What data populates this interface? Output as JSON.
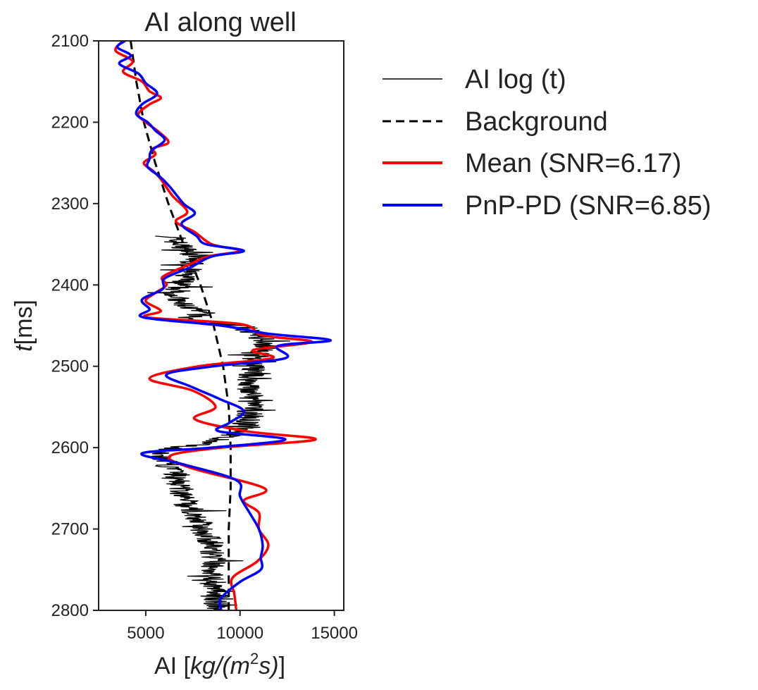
{
  "chart_data": {
    "type": "line",
    "orientation": "vertical-profile",
    "title": "AI along well",
    "xlabel_prefix": "AI [",
    "xlabel_unit_main": "kg/(m",
    "xlabel_unit_sup": "2",
    "xlabel_unit_tail": "s)",
    "xlabel_suffix": "]",
    "ylabel_var": "t",
    "ylabel_unit": "[ms]",
    "xlim": [
      2500,
      15500
    ],
    "ylim": [
      2800,
      2100
    ],
    "y_inverted": true,
    "xticks": [
      5000,
      10000,
      15000
    ],
    "xtick_labels": [
      "5000",
      "10000",
      "15000"
    ],
    "yticks": [
      2100,
      2200,
      2300,
      2400,
      2500,
      2600,
      2700,
      2800
    ],
    "ytick_labels": [
      "2100",
      "2200",
      "2300",
      "2400",
      "2500",
      "2600",
      "2700",
      "2800"
    ],
    "grid": false,
    "legend_position": "outside-right",
    "series": [
      {
        "name": "AI log (t)",
        "color": "#000000",
        "style": "solid-thin",
        "t_start": 2340,
        "t_end": 2800,
        "base_x": [
          [
            2340,
            6200
          ],
          [
            2365,
            7600
          ],
          [
            2385,
            7200
          ],
          [
            2400,
            6800
          ],
          [
            2420,
            6600
          ],
          [
            2435,
            8000
          ],
          [
            2445,
            7000
          ],
          [
            2450,
            10000
          ],
          [
            2470,
            11500
          ],
          [
            2490,
            10800
          ],
          [
            2520,
            10500
          ],
          [
            2550,
            10600
          ],
          [
            2580,
            10200
          ],
          [
            2595,
            8000
          ],
          [
            2605,
            5500
          ],
          [
            2630,
            6500
          ],
          [
            2660,
            7000
          ],
          [
            2690,
            7800
          ],
          [
            2720,
            8500
          ],
          [
            2750,
            8600
          ],
          [
            2780,
            8700
          ],
          [
            2800,
            8800
          ]
        ],
        "spread_x": 1400
      },
      {
        "name": "Background",
        "color": "#000000",
        "style": "dashed",
        "t": [
          2100,
          2150,
          2200,
          2250,
          2300,
          2350,
          2400,
          2450,
          2500,
          2550,
          2600,
          2650,
          2700,
          2750,
          2800
        ],
        "x": [
          4200,
          4500,
          4900,
          5500,
          6200,
          7000,
          7900,
          8600,
          9100,
          9400,
          9500,
          9500,
          9400,
          9400,
          9400
        ]
      },
      {
        "name": "Mean (SNR=6.17)",
        "color": "#ff0000",
        "style": "solid",
        "t": [
          2100,
          2112,
          2125,
          2138,
          2150,
          2162,
          2170,
          2178,
          2190,
          2200,
          2212,
          2225,
          2232,
          2240,
          2250,
          2260,
          2270,
          2290,
          2310,
          2322,
          2335,
          2350,
          2358,
          2365,
          2375,
          2390,
          2400,
          2410,
          2420,
          2432,
          2440,
          2448,
          2462,
          2470,
          2480,
          2490,
          2500,
          2515,
          2530,
          2550,
          2565,
          2580,
          2590,
          2600,
          2610,
          2625,
          2650,
          2665,
          2680,
          2700,
          2720,
          2740,
          2760,
          2780,
          2800
        ],
        "x": [
          3800,
          3400,
          4300,
          3800,
          4800,
          5200,
          5800,
          5200,
          4600,
          5000,
          5700,
          6200,
          5400,
          5500,
          4900,
          5400,
          5800,
          6400,
          7200,
          6600,
          7600,
          8500,
          10000,
          8300,
          7300,
          5900,
          6100,
          5500,
          5000,
          5800,
          5100,
          10000,
          11200,
          13800,
          10700,
          11700,
          7800,
          5200,
          7500,
          8700,
          7600,
          10400,
          14000,
          9000,
          6300,
          7400,
          11300,
          10200,
          11000,
          11000,
          11500,
          10900,
          9600,
          9700,
          9800
        ]
      },
      {
        "name": "PnP-PD (SNR=6.85)",
        "color": "#0000ff",
        "style": "solid",
        "t": [
          2100,
          2108,
          2118,
          2128,
          2140,
          2152,
          2165,
          2178,
          2190,
          2200,
          2210,
          2222,
          2235,
          2245,
          2255,
          2268,
          2280,
          2300,
          2312,
          2325,
          2340,
          2350,
          2358,
          2365,
          2378,
          2392,
          2405,
          2418,
          2430,
          2440,
          2450,
          2460,
          2468,
          2475,
          2490,
          2500,
          2510,
          2525,
          2540,
          2555,
          2570,
          2580,
          2590,
          2600,
          2607,
          2620,
          2640,
          2660,
          2680,
          2700,
          2720,
          2735,
          2750,
          2765,
          2785,
          2800
        ],
        "x": [
          3900,
          3500,
          4200,
          3600,
          4600,
          5000,
          5600,
          4800,
          4500,
          5100,
          5500,
          6000,
          5300,
          5200,
          5100,
          5800,
          6300,
          7000,
          7600,
          6900,
          7700,
          8200,
          10200,
          8500,
          7400,
          6000,
          5900,
          4800,
          5200,
          4900,
          9000,
          11500,
          14800,
          12000,
          12400,
          8600,
          6100,
          7400,
          8900,
          10200,
          9400,
          8900,
          12400,
          8500,
          4800,
          6900,
          9800,
          10000,
          10500,
          11000,
          11200,
          11100,
          11100,
          10000,
          9000,
          9000
        ]
      }
    ]
  }
}
